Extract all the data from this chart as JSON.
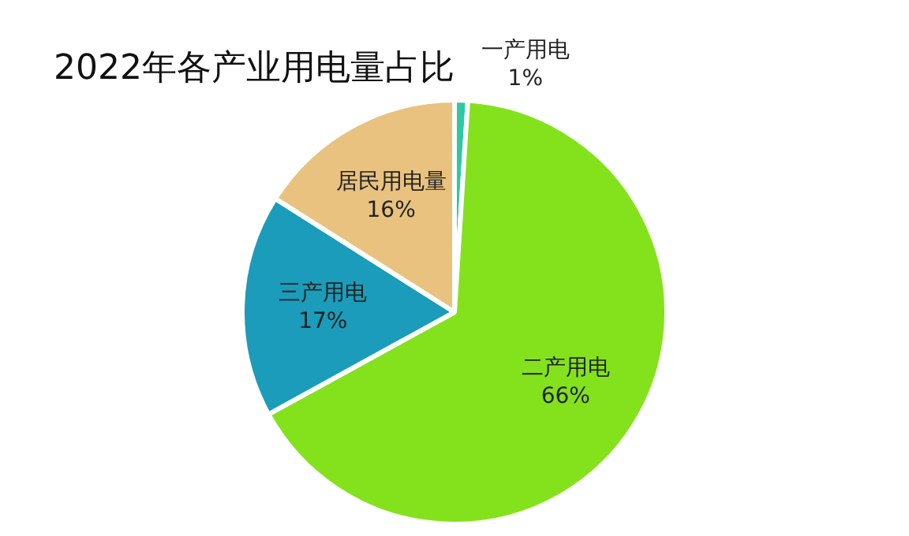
{
  "chart_data": {
    "type": "pie",
    "title": "2022年各产业用电量占比",
    "categories": [
      "一产用电",
      "二产用电",
      "三产用电",
      "居民用电量"
    ],
    "values": [
      1,
      66,
      17,
      16
    ],
    "value_labels": [
      "1%",
      "66%",
      "17%",
      "16%"
    ],
    "colors": [
      "#2ec8a2",
      "#84e21c",
      "#1a9cba",
      "#e8c27e"
    ],
    "legend": false
  }
}
